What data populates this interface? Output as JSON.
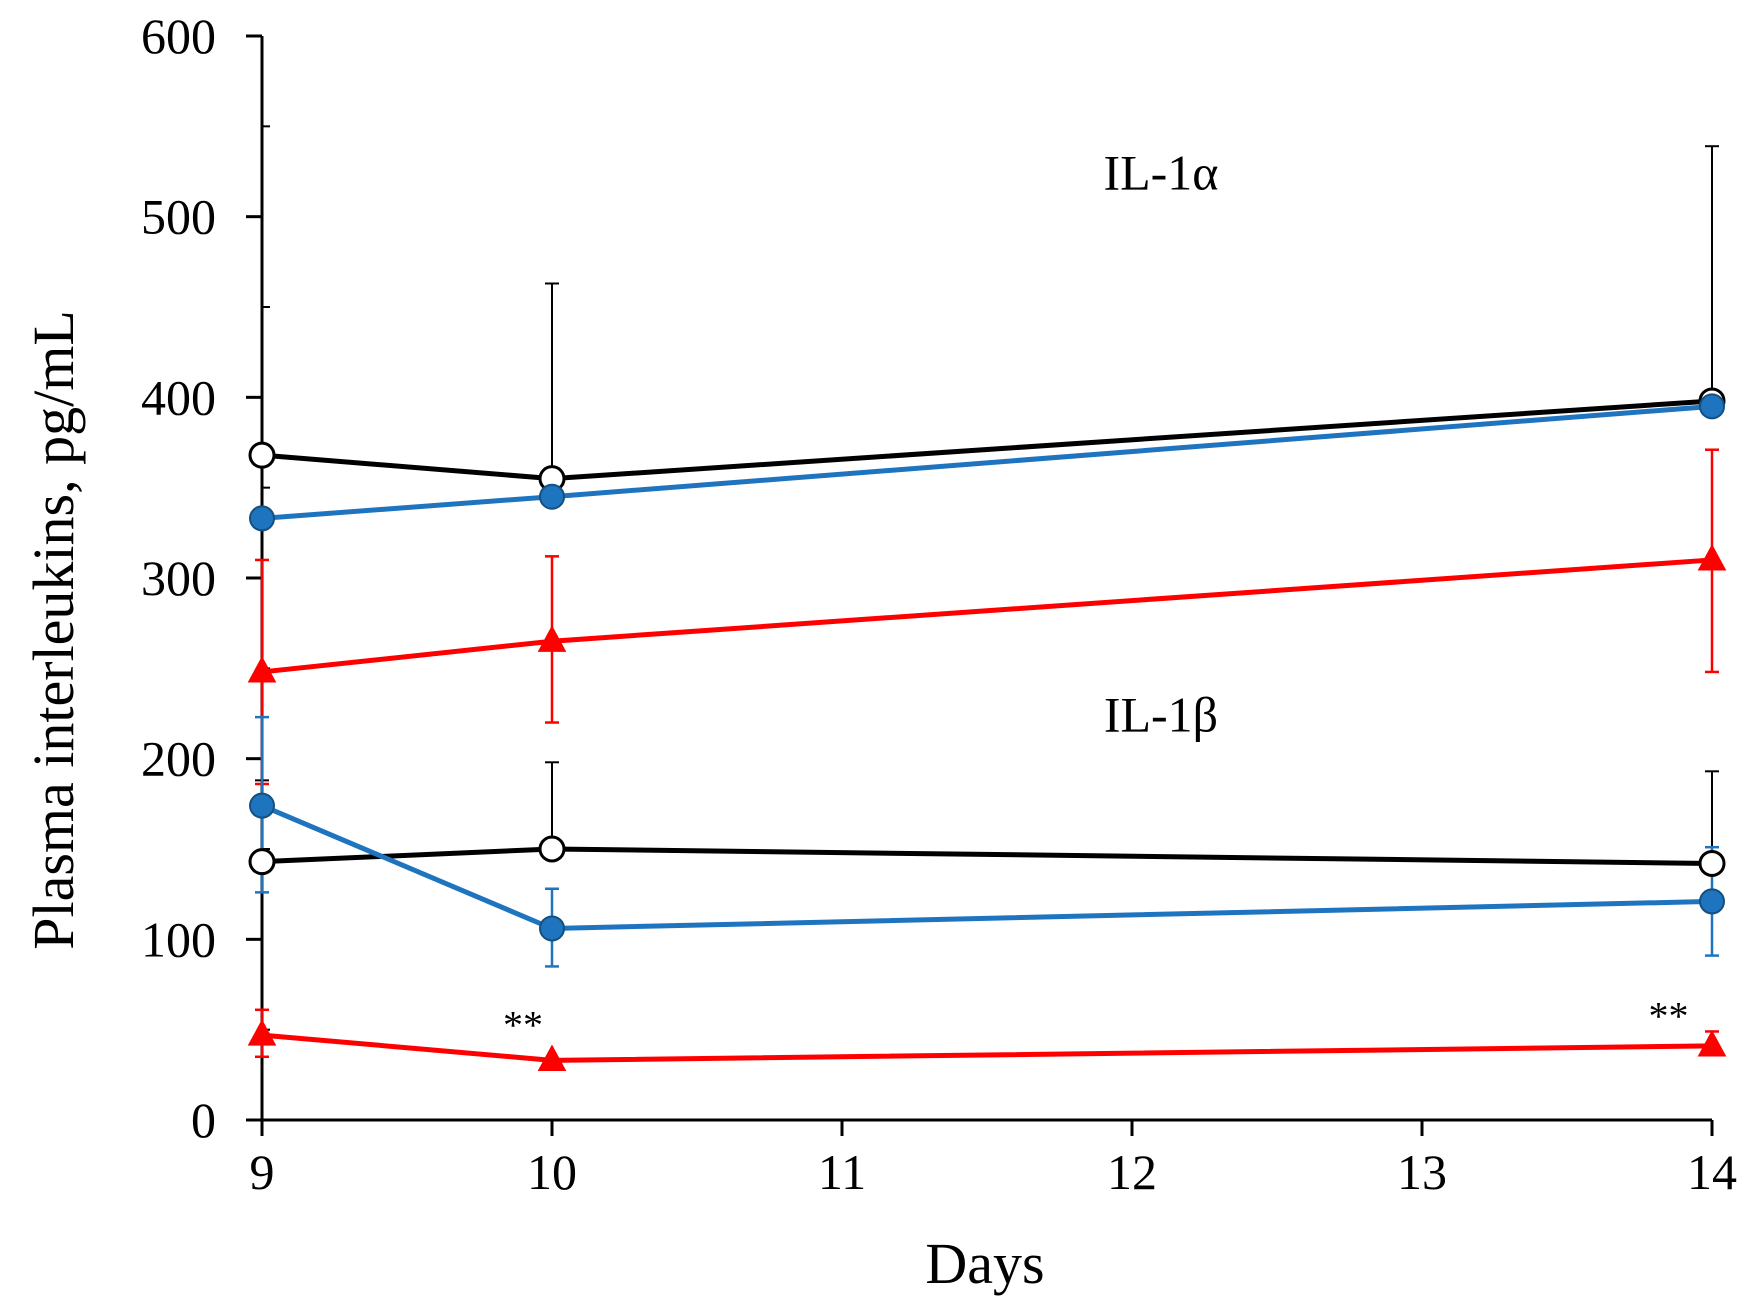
{
  "chart_data": {
    "type": "line",
    "title": "",
    "xlabel": "Days",
    "ylabel": "Plasma interleukins, pg/mL",
    "xlim": [
      9,
      14
    ],
    "ylim": [
      0,
      600
    ],
    "x_ticks": [
      9,
      10,
      11,
      12,
      13,
      14
    ],
    "y_ticks": [
      0,
      100,
      200,
      300,
      400,
      500,
      600
    ],
    "y_minor_step": 50,
    "grid": false,
    "colors": {
      "black": "#000000",
      "blue": "#1f74c0",
      "red": "#ff0000"
    },
    "annotations": [
      {
        "text": "IL-1α",
        "x": 12.1,
        "y": 515
      },
      {
        "text": "IL-1β",
        "x": 12.1,
        "y": 215
      },
      {
        "text": "**",
        "x": 9.9,
        "y": 45
      },
      {
        "text": "**",
        "x": 13.85,
        "y": 50
      }
    ],
    "series": [
      {
        "name": "IL-1α black",
        "group": "IL-1α",
        "color": "#000000",
        "marker": "circle-open",
        "x": [
          9,
          10,
          14
        ],
        "values": [
          368,
          355,
          398
        ],
        "error_up": [
          0,
          108,
          141
        ],
        "error_down": [
          0,
          0,
          0
        ]
      },
      {
        "name": "IL-1α blue",
        "group": "IL-1α",
        "color": "#1f74c0",
        "marker": "circle-filled",
        "x": [
          9,
          10,
          14
        ],
        "values": [
          333,
          345,
          395
        ],
        "error_up": [
          0,
          0,
          0
        ],
        "error_down": [
          0,
          0,
          0
        ]
      },
      {
        "name": "IL-1α red",
        "group": "IL-1α",
        "color": "#ff0000",
        "marker": "triangle-filled",
        "x": [
          9,
          10,
          14
        ],
        "values": [
          248,
          265,
          310
        ],
        "error_up": [
          62,
          47,
          61
        ],
        "error_down": [
          62,
          45,
          62
        ]
      },
      {
        "name": "IL-1β black",
        "group": "IL-1β",
        "color": "#000000",
        "marker": "circle-open",
        "x": [
          9,
          10,
          14
        ],
        "values": [
          143,
          150,
          142
        ],
        "error_up": [
          45,
          48,
          51
        ],
        "error_down": [
          0,
          0,
          0
        ]
      },
      {
        "name": "IL-1β blue",
        "group": "IL-1β",
        "color": "#1f74c0",
        "marker": "circle-filled",
        "x": [
          9,
          10,
          14
        ],
        "values": [
          174,
          106,
          121
        ],
        "error_up": [
          49,
          22,
          30
        ],
        "error_down": [
          48,
          21,
          30
        ]
      },
      {
        "name": "IL-1β red",
        "group": "IL-1β",
        "color": "#ff0000",
        "marker": "triangle-filled",
        "x": [
          9,
          10,
          14
        ],
        "values": [
          47,
          33,
          41
        ],
        "error_up": [
          14,
          0,
          8
        ],
        "error_down": [
          12,
          0,
          0
        ]
      }
    ]
  }
}
